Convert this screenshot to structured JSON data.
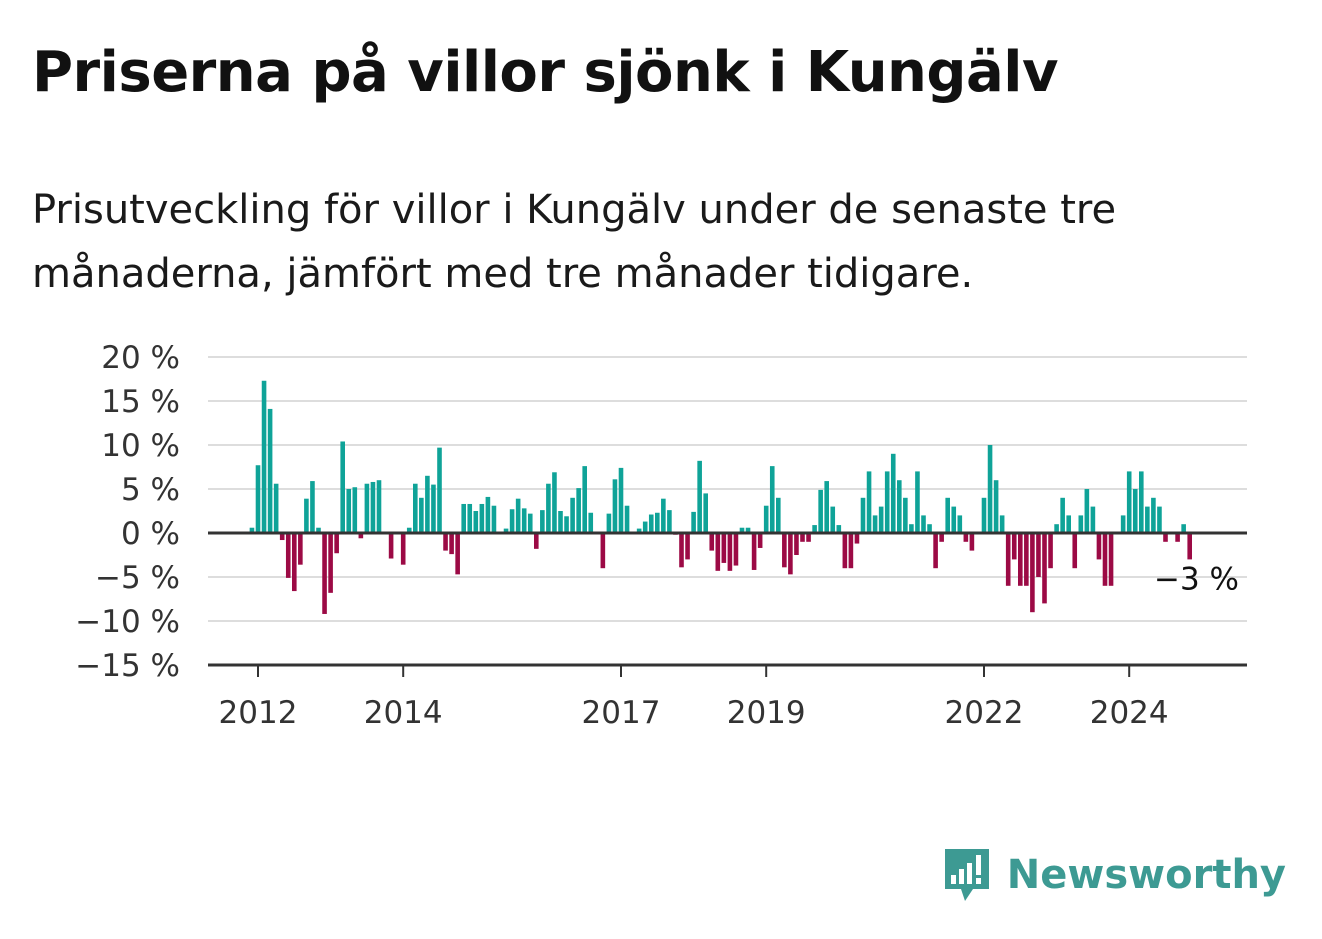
{
  "title": "Priserna på villor sjönk i Kungälv",
  "subtitle": "Prisutveckling för villor i Kungälv under de senaste tre månaderna, jämfört med tre månader tidigare.",
  "brand": {
    "name": "Newsworthy",
    "icon": "newsworthy-logo-icon",
    "color": "#3d9a93"
  },
  "colors": {
    "positive": "#0fa398",
    "negative": "#9c0a45",
    "grid": "#dddddd",
    "axis": "#333333"
  },
  "chart_data": {
    "type": "bar",
    "title": "",
    "xlabel": "",
    "ylabel": "",
    "ylim": [
      -15,
      20
    ],
    "yticks": [
      {
        "value": 20,
        "label": "20 %"
      },
      {
        "value": 15,
        "label": "15 %"
      },
      {
        "value": 10,
        "label": "10 %"
      },
      {
        "value": 5,
        "label": "5 %"
      },
      {
        "value": 0,
        "label": "0 %"
      },
      {
        "value": -5,
        "label": "−5 %"
      },
      {
        "value": -10,
        "label": "−10 %"
      },
      {
        "value": -15,
        "label": "−15 %"
      }
    ],
    "xticks": [
      {
        "year": 2012,
        "label": "2012"
      },
      {
        "year": 2014,
        "label": "2014"
      },
      {
        "year": 2017,
        "label": "2017"
      },
      {
        "year": 2019,
        "label": "2019"
      },
      {
        "year": 2022,
        "label": "2022"
      },
      {
        "year": 2024,
        "label": "2024"
      }
    ],
    "grid": true,
    "x_start": "2011-12",
    "interval": "monthly",
    "annotation": {
      "label": "−3 %",
      "value": -3
    },
    "values": [
      0.6,
      7.7,
      17.3,
      14.1,
      5.6,
      -0.8,
      -5.1,
      -6.6,
      -3.6,
      3.9,
      5.9,
      0.6,
      -9.2,
      -6.8,
      -2.3,
      10.4,
      5.0,
      5.2,
      -0.6,
      5.6,
      5.8,
      6.0,
      0,
      -2.9,
      0,
      -3.6,
      0.6,
      5.6,
      4.0,
      6.5,
      5.5,
      9.7,
      -2.0,
      -2.4,
      -4.7,
      3.3,
      3.3,
      2.5,
      3.3,
      4.1,
      3.1,
      0,
      0.5,
      2.7,
      3.9,
      2.8,
      2.2,
      -1.8,
      2.6,
      5.6,
      6.9,
      2.5,
      1.9,
      4.0,
      5.1,
      7.6,
      2.3,
      0,
      -4.0,
      2.2,
      6.1,
      7.4,
      3.1,
      0,
      0.5,
      1.3,
      2.1,
      2.3,
      3.9,
      2.6,
      -0.2,
      -3.9,
      -3.0,
      2.4,
      8.2,
      4.5,
      -2.0,
      -4.3,
      -3.4,
      -4.3,
      -3.7,
      0.6,
      0.6,
      -4.2,
      -1.7,
      3.1,
      7.6,
      4.0,
      -3.9,
      -4.7,
      -2.5,
      -1.0,
      -1.0,
      0.9,
      4.9,
      5.9,
      3.0,
      0.9,
      -4.0,
      -4.0,
      -1.2,
      4.0,
      7.0,
      2.0,
      3.0,
      7.0,
      9.0,
      6.0,
      4.0,
      1.0,
      7.0,
      2.0,
      1.0,
      -4.0,
      -1.0,
      4.0,
      3.0,
      2.0,
      -1.0,
      -2.0,
      0,
      4.0,
      10.0,
      6.0,
      2.0,
      -6.0,
      -3.0,
      -6.0,
      -6.0,
      -9.0,
      -5.0,
      -8.0,
      -4.0,
      1.0,
      4.0,
      2.0,
      -4.0,
      2.0,
      5.0,
      3.0,
      -3.0,
      -6.0,
      -6.0,
      0,
      2.0,
      7.0,
      5.0,
      7.0,
      3.0,
      4.0,
      3.0,
      -1.0,
      0,
      -1.0,
      1.0,
      -3.0
    ]
  }
}
